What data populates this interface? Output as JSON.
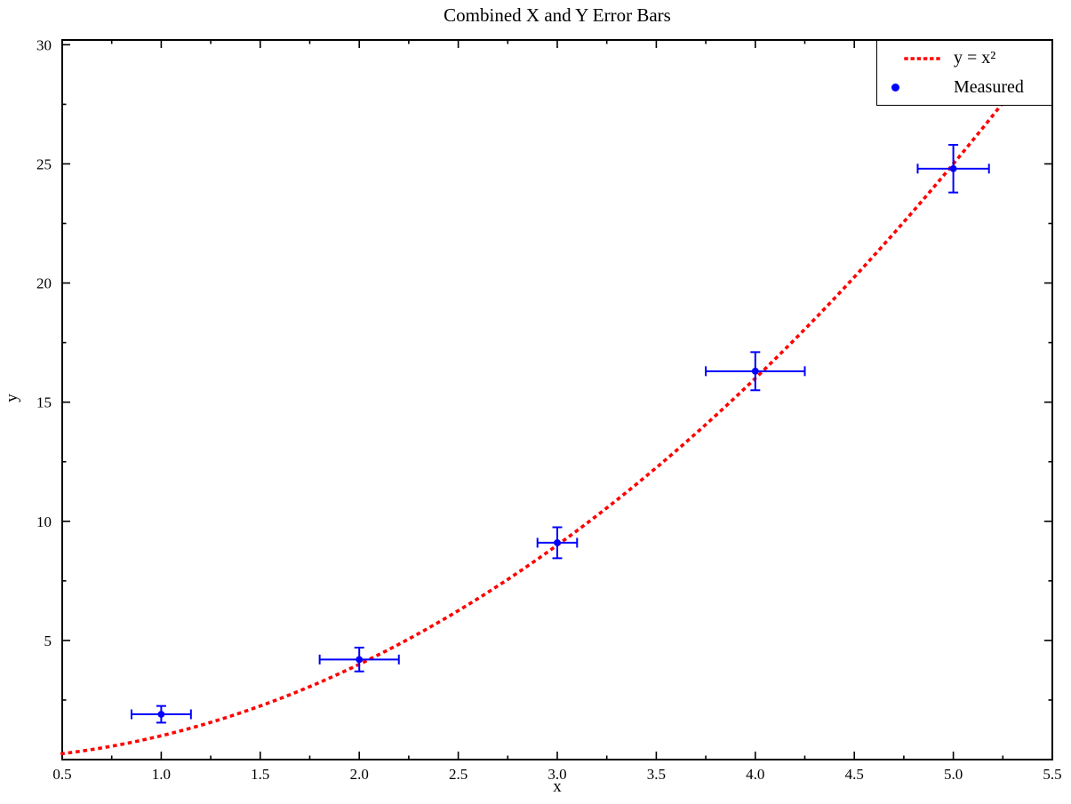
{
  "title": "Combined X and Y Error Bars",
  "legend": {
    "position": "upper right",
    "entries": [
      {
        "label": "y = x²",
        "type": "dotted-line",
        "color": "#ff0000"
      },
      {
        "label": "Measured",
        "type": "marker",
        "color": "#0000ff"
      }
    ]
  },
  "colors": {
    "curve": "#ff0000",
    "measured": "#0000ff",
    "axis": "#000000",
    "background": "#ffffff",
    "legend_border": "#000000"
  },
  "chart_data": {
    "type": "scatter",
    "title": "Combined X and Y Error Bars",
    "xlabel": "x",
    "ylabel": "y",
    "xlim": [
      0.5,
      5.5
    ],
    "ylim": [
      0,
      30.2
    ],
    "grid": false,
    "legend_position": "upper right",
    "x_major_ticks": [
      0.5,
      1.0,
      1.5,
      2.0,
      2.5,
      3.0,
      3.5,
      4.0,
      4.5,
      5.0,
      5.5
    ],
    "x_major_tick_labels": [
      "0.5",
      "1.0",
      "1.5",
      "2.0",
      "2.5",
      "3.0",
      "3.5",
      "4.0",
      "4.5",
      "5.0",
      "5.5"
    ],
    "x_minor_step": 0.25,
    "y_major_ticks": [
      5,
      10,
      15,
      20,
      25,
      30
    ],
    "y_major_tick_labels": [
      "5",
      "10",
      "15",
      "20",
      "25",
      "30"
    ],
    "y_minor_step": 2.5,
    "series": [
      {
        "name": "y = x²",
        "type": "line",
        "linestyle": "dotted",
        "color": "#ff0000",
        "formula": "y = x^2",
        "x_range": [
          0.5,
          5.5
        ]
      },
      {
        "name": "Measured",
        "type": "scatter",
        "marker": "circle",
        "color": "#0000ff",
        "x": [
          1,
          2,
          3,
          4,
          5
        ],
        "y": [
          1.9,
          4.2,
          9.1,
          16.3,
          24.8
        ],
        "xerr": [
          0.15,
          0.2,
          0.1,
          0.25,
          0.18
        ],
        "yerr": [
          0.35,
          0.5,
          0.65,
          0.8,
          1.0
        ]
      }
    ]
  }
}
